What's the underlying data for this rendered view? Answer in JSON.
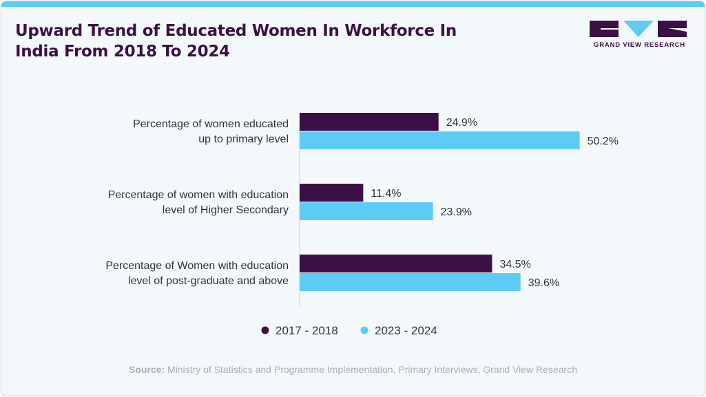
{
  "title": "Upward Trend of Educated Women In Workforce In India From 2018 To 2024",
  "title_lines": [
    "Upward Trend of Educated Women In Workforce In",
    "India From 2018 To 2024"
  ],
  "logo": {
    "text": "GRAND VIEW RESEARCH"
  },
  "source": {
    "label": "Source:",
    "text": "Ministry of Statistics and Programme Implementation, Primary Interviews, Grand View Research"
  },
  "colors": {
    "series1": "#3a1046",
    "series2": "#5ecbf5"
  },
  "chart_data": {
    "type": "bar",
    "orientation": "horizontal",
    "categories": [
      [
        "Percentage of women educated",
        "up to primary level"
      ],
      [
        "Percentage of women with education",
        "level of Higher Secondary"
      ],
      [
        "Percentage of Women with education",
        "level of post-graduate and above"
      ]
    ],
    "series": [
      {
        "name": "2017 - 2018",
        "values": [
          24.9,
          11.4,
          34.5
        ],
        "labels": [
          "24.9%",
          "11.4%",
          "34.5%"
        ]
      },
      {
        "name": "2023 - 2024",
        "values": [
          50.2,
          23.9,
          39.6
        ],
        "labels": [
          "50.2%",
          "23.9%",
          "39.6%"
        ]
      }
    ],
    "legend": "bottom",
    "grid": false
  }
}
